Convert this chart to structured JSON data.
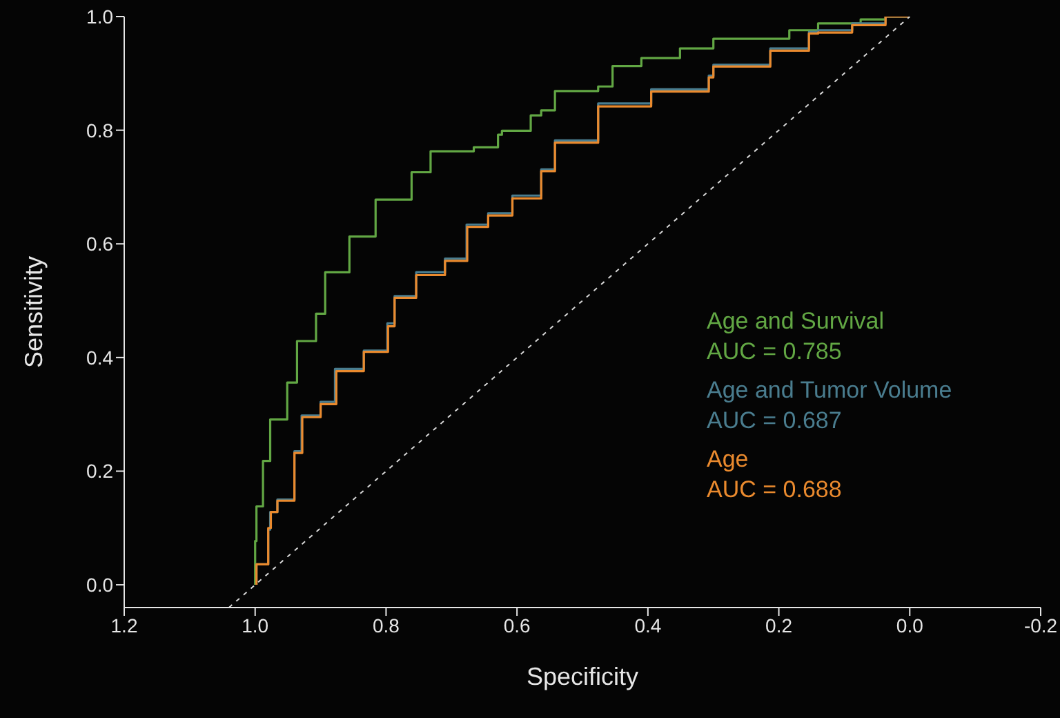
{
  "chart_data": {
    "type": "step",
    "xlabel": "Specificity",
    "ylabel": "Sensitivity",
    "xlim": [
      1.2,
      -0.2
    ],
    "xticks": [
      {
        "value": 1.2,
        "label": "1.2"
      },
      {
        "value": 1,
        "label": "1.0"
      },
      {
        "value": 0.8,
        "label": "0.8"
      },
      {
        "value": 0.6,
        "label": "0.6"
      },
      {
        "value": 0.4,
        "label": "0.4"
      },
      {
        "value": 0.2,
        "label": "0.2"
      },
      {
        "value": 0,
        "label": "0.0"
      },
      {
        "value": -0.2,
        "label": "-0.2"
      }
    ],
    "ylim": [
      -0.04,
      1.0
    ],
    "yticks": [
      {
        "value": 0,
        "label": "0.0"
      },
      {
        "value": 0.2,
        "label": "0.2"
      },
      {
        "value": 0.4,
        "label": "0.4"
      },
      {
        "value": 0.6,
        "label": "0.6"
      },
      {
        "value": 0.8,
        "label": "0.8"
      },
      {
        "value": 1,
        "label": "1.0"
      }
    ],
    "grid": false,
    "legend": "right",
    "marker": "none",
    "annotations": [
      "AUC = 0.785",
      "AUC = 0.687",
      "AUC = 0.688"
    ],
    "series": [
      {
        "name": "Age and Survival",
        "color": "#62a744",
        "x": [
          1.0,
          0.998,
          0.988,
          0.977,
          0.951,
          0.936,
          0.907,
          0.893,
          0.856,
          0.816,
          0.761,
          0.732,
          0.666,
          0.629,
          0.623,
          0.579,
          0.563,
          0.542,
          0.476,
          0.454,
          0.41,
          0.351,
          0.3,
          0.184,
          0.14,
          0.075,
          0.037,
          0.0
        ],
        "values": [
          0.0,
          0.077,
          0.138,
          0.218,
          0.291,
          0.356,
          0.429,
          0.477,
          0.55,
          0.613,
          0.678,
          0.726,
          0.763,
          0.77,
          0.792,
          0.799,
          0.826,
          0.835,
          0.869,
          0.877,
          0.913,
          0.927,
          0.944,
          0.961,
          0.976,
          0.988,
          0.995,
          1.0
        ]
      },
      {
        "name": "Age and Tumor Volume",
        "color": "#4a7d8f",
        "x": [
          0.998,
          0.98,
          0.977,
          0.966,
          0.94,
          0.929,
          0.9,
          0.878,
          0.834,
          0.798,
          0.787,
          0.754,
          0.71,
          0.677,
          0.644,
          0.607,
          0.563,
          0.542,
          0.476,
          0.395,
          0.307,
          0.3,
          0.213,
          0.154,
          0.14,
          0.088,
          0.037,
          0.0
        ],
        "values": [
          0.0,
          0.036,
          0.097,
          0.128,
          0.15,
          0.235,
          0.298,
          0.322,
          0.38,
          0.412,
          0.46,
          0.508,
          0.55,
          0.574,
          0.634,
          0.654,
          0.685,
          0.731,
          0.782,
          0.847,
          0.872,
          0.896,
          0.915,
          0.944,
          0.973,
          0.976,
          0.988,
          1.0
        ]
      },
      {
        "name": "Age",
        "color": "#ea8a2e",
        "x": [
          0.998,
          0.98,
          0.976,
          0.966,
          0.94,
          0.928,
          0.9,
          0.876,
          0.834,
          0.797,
          0.787,
          0.754,
          0.71,
          0.676,
          0.644,
          0.607,
          0.563,
          0.542,
          0.476,
          0.395,
          0.307,
          0.3,
          0.213,
          0.154,
          0.14,
          0.088,
          0.037,
          0.0
        ],
        "values": [
          0.0,
          0.036,
          0.1,
          0.128,
          0.148,
          0.232,
          0.295,
          0.318,
          0.376,
          0.41,
          0.455,
          0.505,
          0.545,
          0.57,
          0.63,
          0.65,
          0.68,
          0.728,
          0.778,
          0.842,
          0.868,
          0.893,
          0.912,
          0.94,
          0.97,
          0.972,
          0.985,
          1.0
        ]
      },
      {
        "type": "line",
        "color": "#d8d8d8",
        "line_style": "dashed",
        "x": [
          1.04,
          0.0
        ],
        "values": [
          -0.04,
          1.0
        ]
      }
    ]
  }
}
